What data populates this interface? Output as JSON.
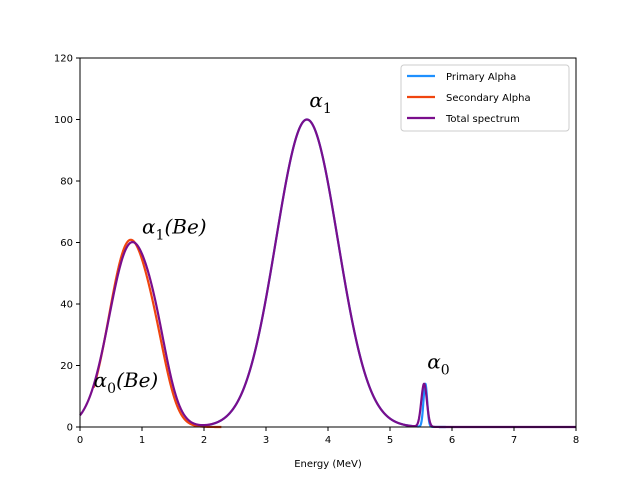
{
  "chart_data": {
    "type": "line",
    "title": "",
    "xlabel": "Energy (MeV)",
    "ylabel": "",
    "xlim": [
      0,
      8
    ],
    "ylim": [
      0,
      120
    ],
    "xticks": [
      0,
      1,
      2,
      3,
      4,
      5,
      6,
      7,
      8
    ],
    "yticks": [
      0,
      20,
      40,
      60,
      80,
      100,
      120
    ],
    "xtick_labels": [
      "0",
      "1",
      "2",
      "3",
      "4",
      "5",
      "6",
      "7",
      "8"
    ],
    "ytick_labels": [
      "0",
      "20",
      "40",
      "60",
      "80",
      "100",
      "120"
    ],
    "grid": false,
    "legend_position": "top-right",
    "series": [
      {
        "name": "Primary Alpha",
        "color": "#1e90ff",
        "components": [
          {
            "center": 3.66,
            "amplitude": 100,
            "sigma": 0.5
          },
          {
            "center": 5.57,
            "amplitude": 14,
            "sigma": 0.03
          }
        ],
        "x_range": [
          2.05,
          5.9
        ]
      },
      {
        "name": "Secondary Alpha",
        "color": "#f0450f",
        "components": [
          {
            "center": 0.8,
            "amplitude": 60,
            "sigma": 0.33
          },
          {
            "center": 1.25,
            "amplitude": 10,
            "sigma": 0.2
          }
        ],
        "x_range": [
          0.22,
          2.28
        ]
      },
      {
        "name": "Total spectrum",
        "color": "#7a0e8c",
        "components": [
          {
            "center": 0.82,
            "amplitude": 59,
            "sigma": 0.35
          },
          {
            "center": 1.25,
            "amplitude": 10,
            "sigma": 0.2
          },
          {
            "center": 3.66,
            "amplitude": 100,
            "sigma": 0.5
          },
          {
            "center": 5.55,
            "amplitude": 14,
            "sigma": 0.045
          }
        ],
        "x_range": [
          0,
          8
        ]
      }
    ],
    "annotations": [
      {
        "base": "α",
        "sub": "1",
        "suffix": "",
        "x": 3.7,
        "y": 104
      },
      {
        "base": "α",
        "sub": "1",
        "suffix": "(Be)",
        "x": 1.0,
        "y": 63
      },
      {
        "base": "α",
        "sub": "0",
        "suffix": "(Be)",
        "x": 0.22,
        "y": 13
      },
      {
        "base": "α",
        "sub": "0",
        "suffix": "",
        "x": 5.6,
        "y": 19
      }
    ]
  }
}
